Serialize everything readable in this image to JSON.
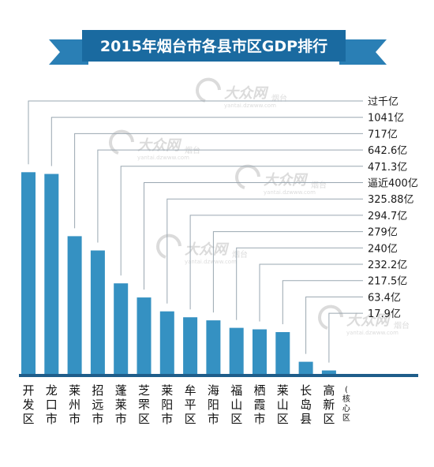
{
  "chart_data": {
    "type": "bar",
    "title": "2015年烟台市各县市区GDP排行",
    "categories": [
      "开发区",
      "龙口市",
      "莱州市",
      "招远市",
      "蓬莱市",
      "芝罘区",
      "莱阳市",
      "牟平区",
      "海阳市",
      "福山区",
      "栖霞市",
      "莱山区",
      "长岛县",
      "高新区"
    ],
    "category_note": [
      "",
      "",
      "",
      "",
      "",
      "",
      "",
      "",
      "",
      "",
      "",
      "",
      "",
      "(核心区"
    ],
    "value_labels": [
      "过千亿",
      "1041亿",
      "717亿",
      "642.6亿",
      "471.3亿",
      "逼近400亿",
      "325.88亿",
      "294.7亿",
      "279亿",
      "240亿",
      "232.2亿",
      "217.5亿",
      "63.4亿",
      "17.9亿"
    ],
    "values": [
      1050,
      1041,
      717,
      642.6,
      471.3,
      398,
      325.88,
      294.7,
      279,
      240,
      232.2,
      217.5,
      63.4,
      17.9
    ],
    "unit": "亿",
    "ylim": [
      0,
      1150
    ],
    "grid": false,
    "bar_color": "#3591c2",
    "baseline_color": "#1f5d8a",
    "title_bg": "#1a6aa0"
  },
  "watermark": {
    "brand": "大众网",
    "city": "烟台",
    "url": "yantai.dzwww.com"
  }
}
